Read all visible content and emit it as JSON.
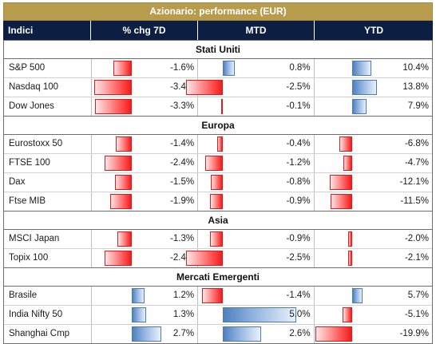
{
  "title": "Azionario: performance (EUR)",
  "headers": [
    "Indici",
    "% chg 7D",
    "MTD",
    "YTD"
  ],
  "colors": {
    "title_bg": "#b89c4e",
    "header_bg": "#0d1e43",
    "negative_bar": "#ff2b2b",
    "positive_bar": "#4f81bd"
  },
  "groups": [
    {
      "name": "Stati Uniti",
      "rows": [
        {
          "name": "S&P 500",
          "d7": -1.6,
          "mtd": 0.8,
          "ytd": 10.4,
          "d7_label": "-1.6%",
          "mtd_label": "0.8%",
          "ytd_label": "10.4%"
        },
        {
          "name": "Nasdaq 100",
          "d7": -3.4,
          "mtd": -2.5,
          "ytd": 13.8,
          "d7_label": "-3.4%",
          "mtd_label": "-2.5%",
          "ytd_label": "13.8%"
        },
        {
          "name": "Dow Jones",
          "d7": -3.3,
          "mtd": -0.1,
          "ytd": 7.9,
          "d7_label": "-3.3%",
          "mtd_label": "-0.1%",
          "ytd_label": "7.9%"
        }
      ]
    },
    {
      "name": "Europa",
      "rows": [
        {
          "name": "Eurostoxx 50",
          "d7": -1.4,
          "mtd": -0.4,
          "ytd": -6.8,
          "d7_label": "-1.4%",
          "mtd_label": "-0.4%",
          "ytd_label": "-6.8%"
        },
        {
          "name": "FTSE 100",
          "d7": -2.4,
          "mtd": -1.2,
          "ytd": -4.7,
          "d7_label": "-2.4%",
          "mtd_label": "-1.2%",
          "ytd_label": "-4.7%"
        },
        {
          "name": "Dax",
          "d7": -1.5,
          "mtd": -0.8,
          "ytd": -12.1,
          "d7_label": "-1.5%",
          "mtd_label": "-0.8%",
          "ytd_label": "-12.1%"
        },
        {
          "name": "Ftse MIB",
          "d7": -1.9,
          "mtd": -0.9,
          "ytd": -11.5,
          "d7_label": "-1.9%",
          "mtd_label": "-0.9%",
          "ytd_label": "-11.5%"
        }
      ]
    },
    {
      "name": "Asia",
      "rows": [
        {
          "name": "MSCI Japan",
          "d7": -1.3,
          "mtd": -0.9,
          "ytd": -2.0,
          "d7_label": "-1.3%",
          "mtd_label": "-0.9%",
          "ytd_label": "-2.0%"
        },
        {
          "name": "Topix 100",
          "d7": -2.4,
          "mtd": -2.5,
          "ytd": -2.1,
          "d7_label": "-2.4%",
          "mtd_label": "-2.5%",
          "ytd_label": "-2.1%"
        }
      ]
    },
    {
      "name": "Mercati Emergenti",
      "rows": [
        {
          "name": "Brasile",
          "d7": 1.2,
          "mtd": -1.4,
          "ytd": 5.7,
          "d7_label": "1.2%",
          "mtd_label": "-1.4%",
          "ytd_label": "5.7%"
        },
        {
          "name": "India Nifty 50",
          "d7": 1.3,
          "mtd": 5.0,
          "ytd": -5.1,
          "d7_label": "1.3%",
          "mtd_label": "5.0%",
          "ytd_label": "-5.1%"
        },
        {
          "name": "Shanghai Cmp",
          "d7": 2.7,
          "mtd": 2.6,
          "ytd": -19.9,
          "d7_label": "2.7%",
          "mtd_label": "2.6%",
          "ytd_label": "-19.9%"
        }
      ]
    }
  ]
}
